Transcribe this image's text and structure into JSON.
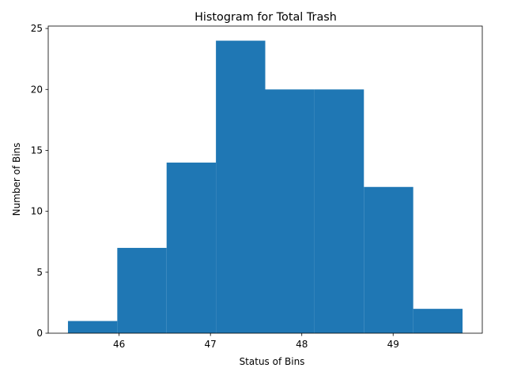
{
  "chart_data": {
    "type": "bar",
    "variant": "histogram",
    "title": "Histogram for Total Trash",
    "xlabel": "Status of Bins",
    "ylabel": "Number of Bins",
    "bins": [
      {
        "x0": 45.44,
        "x1": 45.98,
        "count": 1
      },
      {
        "x0": 45.98,
        "x1": 46.52,
        "count": 7
      },
      {
        "x0": 46.52,
        "x1": 47.06,
        "count": 14
      },
      {
        "x0": 47.06,
        "x1": 47.6,
        "count": 24
      },
      {
        "x0": 47.6,
        "x1": 48.14,
        "count": 20
      },
      {
        "x0": 48.14,
        "x1": 48.68,
        "count": 20
      },
      {
        "x0": 48.68,
        "x1": 49.22,
        "count": 12
      },
      {
        "x0": 49.22,
        "x1": 49.76,
        "count": 2
      }
    ],
    "xlim": [
      45.224,
      49.976
    ],
    "ylim": [
      0,
      25.2
    ],
    "xticks": [
      46,
      47,
      48,
      49
    ],
    "yticks": [
      0,
      5,
      10,
      15,
      20,
      25
    ],
    "grid": false,
    "legend": "none",
    "bar_color": "#1f77b4"
  }
}
